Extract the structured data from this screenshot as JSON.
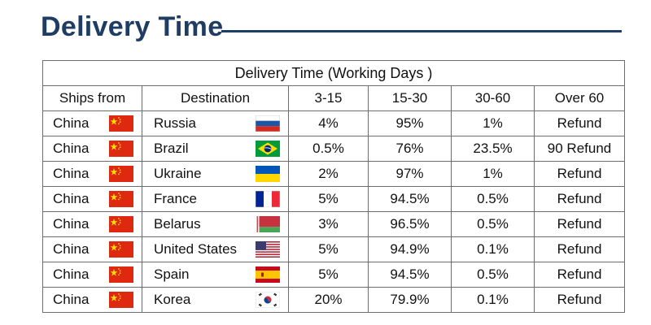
{
  "page": {
    "title": "Delivery Time"
  },
  "table": {
    "caption": "Delivery Time (Working Days )",
    "headers": [
      "Ships from",
      "Destination",
      "3-15",
      "15-30",
      "30-60",
      "Over 60"
    ],
    "rows": [
      {
        "from": "China",
        "from_flag": "china-flag",
        "dest": "Russia",
        "dest_flag": "russia-flag",
        "d3_15": "4%",
        "d15_30": "95%",
        "d30_60": "1%",
        "over60": "Refund",
        "bold": false
      },
      {
        "from": "China",
        "from_flag": "china-flag",
        "dest": "Brazil",
        "dest_flag": "brazil-flag",
        "d3_15": "0.5%",
        "d15_30": "76%",
        "d30_60": "23.5%",
        "over60": "90 Refund",
        "bold": true
      },
      {
        "from": "China",
        "from_flag": "china-flag",
        "dest": "Ukraine",
        "dest_flag": "ukraine-flag",
        "d3_15": "2%",
        "d15_30": "97%",
        "d30_60": "1%",
        "over60": "Refund",
        "bold": false
      },
      {
        "from": "China",
        "from_flag": "china-flag",
        "dest": "France",
        "dest_flag": "france-flag",
        "d3_15": "5%",
        "d15_30": "94.5%",
        "d30_60": "0.5%",
        "over60": "Refund",
        "bold": false
      },
      {
        "from": "China",
        "from_flag": "china-flag",
        "dest": "Belarus",
        "dest_flag": "belarus-flag",
        "d3_15": "3%",
        "d15_30": "96.5%",
        "d30_60": "0.5%",
        "over60": "Refund",
        "bold": false
      },
      {
        "from": "China",
        "from_flag": "china-flag",
        "dest": "United States",
        "dest_flag": "usa-flag",
        "d3_15": "5%",
        "d15_30": "94.9%",
        "d30_60": "0.1%",
        "over60": "Refund",
        "bold": false
      },
      {
        "from": "China",
        "from_flag": "china-flag",
        "dest": "Spain",
        "dest_flag": "spain-flag",
        "d3_15": "5%",
        "d15_30": "94.5%",
        "d30_60": "0.5%",
        "over60": "Refund",
        "bold": false
      },
      {
        "from": "China",
        "from_flag": "china-flag",
        "dest": "Korea",
        "dest_flag": "korea-flag",
        "d3_15": "20%",
        "d15_30": "79.9%",
        "d30_60": "0.1%",
        "over60": "Refund",
        "bold": false
      }
    ]
  },
  "colors": {
    "title": "#1f3d63",
    "border": "#6d6d6d"
  }
}
